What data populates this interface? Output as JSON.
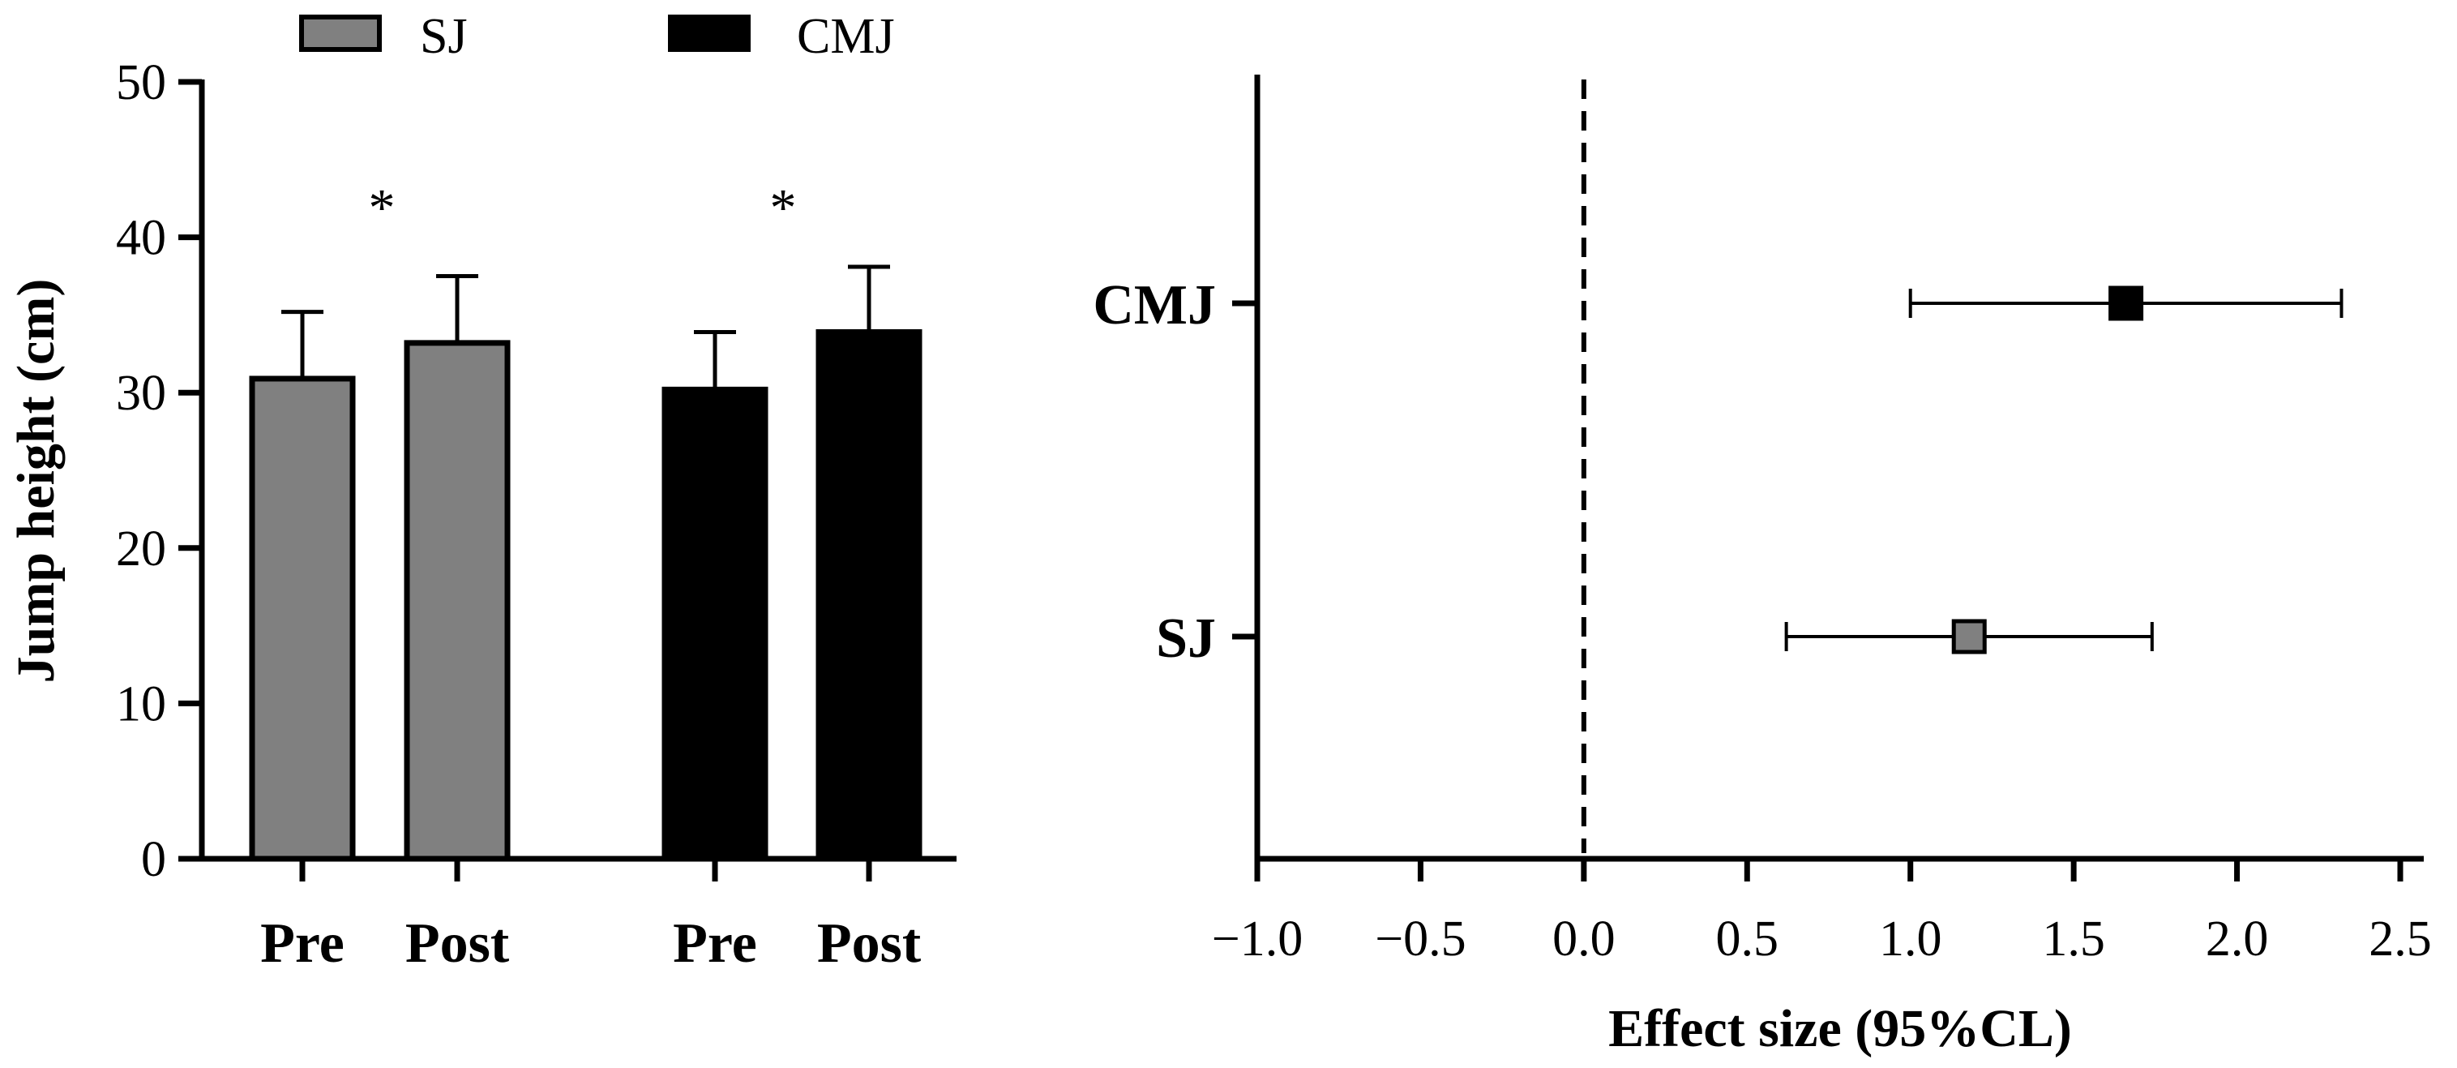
{
  "colors": {
    "SJ": "#808080",
    "CMJ": "#000000",
    "axis": "#000000"
  },
  "chart_data": [
    {
      "type": "bar",
      "title": "",
      "xlabel": "",
      "ylabel": "Jump height (cm)",
      "ylim": [
        0,
        50
      ],
      "yticks": [
        0,
        10,
        20,
        30,
        40,
        50
      ],
      "legend": {
        "position": "top",
        "entries": [
          "SJ",
          "CMJ"
        ]
      },
      "categories": [
        "Pre",
        "Post",
        "Pre",
        "Post"
      ],
      "groups": [
        {
          "name": "SJ",
          "significance_marker": "*",
          "bars": [
            {
              "label": "Pre",
              "value": 30.9,
              "sd": 4.3
            },
            {
              "label": "Post",
              "value": 33.2,
              "sd": 4.3
            }
          ]
        },
        {
          "name": "CMJ",
          "significance_marker": "*",
          "bars": [
            {
              "label": "Pre",
              "value": 30.2,
              "sd": 3.7
            },
            {
              "label": "Post",
              "value": 33.9,
              "sd": 4.2
            }
          ]
        }
      ]
    },
    {
      "type": "scatter",
      "title": "",
      "xlabel": "Effect size (95%CL)",
      "ylabel": "",
      "xlim": [
        -1.0,
        2.5
      ],
      "xticks": [
        "−1.0",
        "−0.5",
        "0.0",
        "0.5",
        "1.0",
        "1.5",
        "2.0",
        "2.5"
      ],
      "reference_line": 0.0,
      "series": [
        {
          "name": "CMJ",
          "value": 1.66,
          "ci_low": 1.0,
          "ci_high": 2.32
        },
        {
          "name": "SJ",
          "value": 1.18,
          "ci_low": 0.62,
          "ci_high": 1.74
        }
      ]
    }
  ]
}
